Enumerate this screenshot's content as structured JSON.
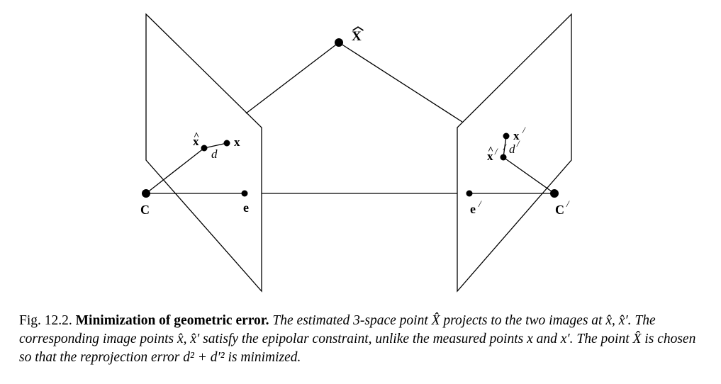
{
  "diagram": {
    "labels": {
      "X_hat": "X",
      "x_hat": "x",
      "x": "x",
      "d": "d",
      "C": "C",
      "e": "e",
      "x_hat_prime": "x",
      "x_prime": "x",
      "d_prime": "d",
      "e_prime": "e",
      "C_prime": "C",
      "prime_mark": "/",
      "hat_mark": "^",
      "wide_hat_mark": "︿"
    }
  },
  "caption": {
    "fig_number": "Fig. 12.2.",
    "title": "Minimization of geometric error.",
    "text": "The estimated 3-space point X̂ projects to the two images at x̂, x̂′. The corresponding image points x̂, x̂′ satisfy the epipolar constraint, unlike the measured points x and x′. The point X̂ is chosen so that the reprojection error d² + d′² is minimized."
  }
}
